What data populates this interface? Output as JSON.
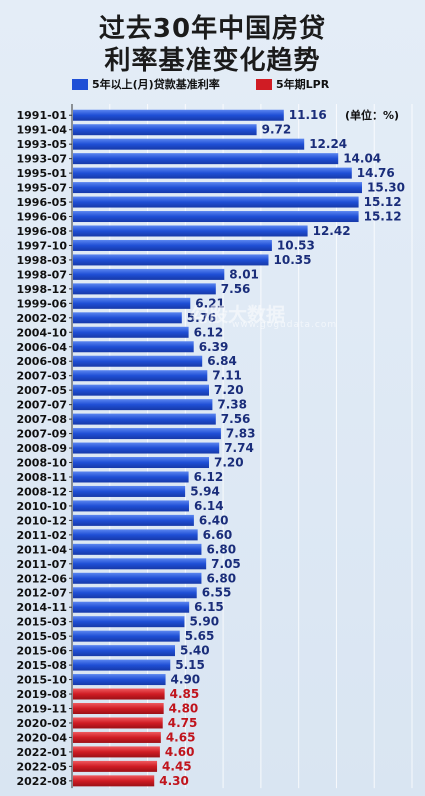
{
  "title_line1": "过去30年中国房贷",
  "title_line2": "利率基准变化趋势",
  "legend": [
    {
      "name": "5年以上(月)贷款基准利率",
      "color": "#1f4fd6"
    },
    {
      "name": "5年期LPR",
      "color": "#d01c24"
    }
  ],
  "unit_note": "(单位：%)",
  "watermark": "勾股大数据",
  "watermark_sub": "www.gogudata.com",
  "colors": {
    "blue": "#1f4fd6",
    "red": "#d01c24"
  },
  "chart_data": {
    "type": "bar",
    "orientation": "horizontal",
    "categories": [
      "1991-01",
      "1991-04",
      "1993-05",
      "1993-07",
      "1995-01",
      "1995-07",
      "1996-05",
      "1996-06",
      "1996-08",
      "1997-10",
      "1998-03",
      "1998-07",
      "1998-12",
      "1999-06",
      "2002-02",
      "2004-10",
      "2006-04",
      "2006-08",
      "2007-03",
      "2007-05",
      "2007-07",
      "2007-08",
      "2007-09",
      "2008-09",
      "2008-10",
      "2008-11",
      "2008-12",
      "2010-10",
      "2010-12",
      "2011-02",
      "2011-04",
      "2011-07",
      "2012-06",
      "2012-07",
      "2014-11",
      "2015-03",
      "2015-05",
      "2015-06",
      "2015-08",
      "2015-10",
      "2019-08",
      "2019-11",
      "2020-02",
      "2020-04",
      "2022-01",
      "2022-05",
      "2022-08"
    ],
    "values": [
      11.16,
      9.72,
      12.24,
      14.04,
      14.76,
      15.3,
      15.12,
      15.12,
      12.42,
      10.53,
      10.35,
      8.01,
      7.56,
      6.21,
      5.76,
      6.12,
      6.39,
      6.84,
      7.11,
      7.2,
      7.38,
      7.56,
      7.83,
      7.74,
      7.2,
      6.12,
      5.94,
      6.14,
      6.4,
      6.6,
      6.8,
      7.05,
      6.8,
      6.55,
      6.15,
      5.9,
      5.65,
      5.4,
      5.15,
      4.9,
      4.85,
      4.8,
      4.75,
      4.65,
      4.6,
      4.45,
      4.3
    ],
    "labels": [
      "11.16",
      "9.72",
      "12.24",
      "14.04",
      "14.76",
      "15.30",
      "15.12",
      "15.12",
      "12.42",
      "10.53",
      "10.35",
      "8.01",
      "7.56",
      "6.21",
      "5.76",
      "6.12",
      "6.39",
      "6.84",
      "7.11",
      "7.20",
      "7.38",
      "7.56",
      "7.83",
      "7.74",
      "7.20",
      "6.12",
      "5.94",
      "6.14",
      "6.40",
      "6.60",
      "6.80",
      "7.05",
      "6.80",
      "6.55",
      "6.15",
      "5.90",
      "5.65",
      "5.40",
      "5.15",
      "4.90",
      "4.85",
      "4.80",
      "4.75",
      "4.65",
      "4.60",
      "4.45",
      "4.30"
    ],
    "series_of_bar": [
      "blue",
      "blue",
      "blue",
      "blue",
      "blue",
      "blue",
      "blue",
      "blue",
      "blue",
      "blue",
      "blue",
      "blue",
      "blue",
      "blue",
      "blue",
      "blue",
      "blue",
      "blue",
      "blue",
      "blue",
      "blue",
      "blue",
      "blue",
      "blue",
      "blue",
      "blue",
      "blue",
      "blue",
      "blue",
      "blue",
      "blue",
      "blue",
      "blue",
      "blue",
      "blue",
      "blue",
      "blue",
      "blue",
      "blue",
      "blue",
      "red",
      "red",
      "red",
      "red",
      "red",
      "red",
      "red"
    ],
    "grid": true,
    "legend_position": "top"
  }
}
